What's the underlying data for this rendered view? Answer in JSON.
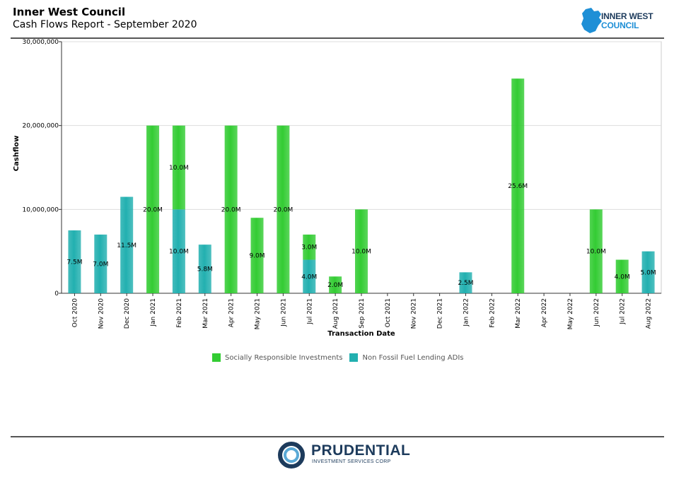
{
  "header": {
    "title": "Inner West Council",
    "subtitle": "Cash Flows Report - September 2020",
    "logo_line1": "INNER WEST",
    "logo_line2": "COUNCIL"
  },
  "footer": {
    "brand": "PRUDENTIAL",
    "brand_sub": "INVESTMENT SERVICES CORP"
  },
  "colors": {
    "green": "#33cc33",
    "teal": "#22b0b0",
    "council_blue": "#1e8fd6",
    "council_dark": "#1d3b5c"
  },
  "chart_data": {
    "type": "bar",
    "stacked": true,
    "xlabel": "Transaction Date",
    "ylabel": "Cashflow",
    "ylim": [
      0,
      30000000
    ],
    "yticks": [
      0,
      10000000,
      20000000,
      30000000
    ],
    "ytick_labels": [
      "0",
      "10,000,000",
      "20,000,000",
      "30,000,000"
    ],
    "grid": true,
    "legend_position": "bottom",
    "categories": [
      "Oct 2020",
      "Nov 2020",
      "Dec 2020",
      "Jan 2021",
      "Feb 2021",
      "Mar 2021",
      "Apr 2021",
      "May 2021",
      "Jun 2021",
      "Jul 2021",
      "Aug 2021",
      "Sep 2021",
      "Oct 2021",
      "Nov 2021",
      "Dec 2021",
      "Jan 2022",
      "Feb 2022",
      "Mar 2022",
      "Apr 2022",
      "May 2022",
      "Jun 2022",
      "Jul 2022",
      "Aug 2022"
    ],
    "series": [
      {
        "name": "Non Fossil Fuel Lending ADIs",
        "color": "#22b0b0",
        "values": [
          7500000,
          7000000,
          11500000,
          0,
          10000000,
          5800000,
          0,
          0,
          0,
          4000000,
          0,
          0,
          0,
          0,
          0,
          2500000,
          0,
          0,
          0,
          0,
          0,
          0,
          5000000
        ],
        "labels": [
          "7.5M",
          "7.0M",
          "11.5M",
          "",
          "10.0M",
          "5.8M",
          "",
          "",
          "",
          "4.0M",
          "",
          "",
          "",
          "",
          "",
          "2.5M",
          "",
          "",
          "",
          "",
          "",
          "",
          "5.0M"
        ]
      },
      {
        "name": "Socially Responsible Investments",
        "color": "#33cc33",
        "values": [
          0,
          0,
          0,
          20000000,
          10000000,
          0,
          20000000,
          9000000,
          20000000,
          3000000,
          2000000,
          10000000,
          0,
          0,
          0,
          0,
          0,
          25600000,
          0,
          0,
          10000000,
          4000000,
          0
        ],
        "labels": [
          "",
          "",
          "",
          "20.0M",
          "10.0M",
          "",
          "20.0M",
          "9.0M",
          "20.0M",
          "3.0M",
          "2.0M",
          "10.0M",
          "",
          "",
          "",
          "",
          "",
          "25.6M",
          "",
          "",
          "10.0M",
          "4.0M",
          ""
        ]
      }
    ],
    "legend": [
      "Socially Responsible Investments",
      "Non Fossil Fuel Lending ADIs"
    ]
  }
}
